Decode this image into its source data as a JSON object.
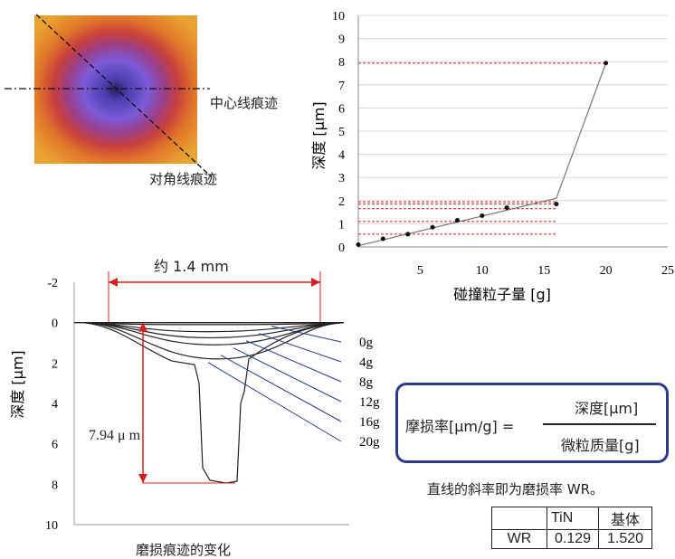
{
  "heatmap": {
    "center_line_label": "中心线痕迹",
    "diagonal_label": "对角线痕迹"
  },
  "chart_data": [
    {
      "type": "scatter",
      "xlabel": "碰撞粒子量 [g]",
      "ylabel": "深度 [μm]",
      "xlim": [
        0,
        25
      ],
      "ylim": [
        0,
        10
      ],
      "x_ticks": [
        "5",
        "10",
        "15",
        "20",
        "25"
      ],
      "y_ticks": [
        "0",
        "1",
        "2",
        "3",
        "4",
        "5",
        "6",
        "7",
        "8",
        "9",
        "10"
      ],
      "points": [
        {
          "x": 0,
          "y": 0.1
        },
        {
          "x": 2,
          "y": 0.35
        },
        {
          "x": 4,
          "y": 0.55
        },
        {
          "x": 6,
          "y": 0.85
        },
        {
          "x": 8,
          "y": 1.15
        },
        {
          "x": 10,
          "y": 1.35
        },
        {
          "x": 12,
          "y": 1.7
        },
        {
          "x": 16,
          "y": 1.85
        },
        {
          "x": 20,
          "y": 7.94
        }
      ],
      "fit_line": [
        {
          "x": 0,
          "y": 0.05
        },
        {
          "x": 16,
          "y": 2.1
        },
        {
          "x": 20,
          "y": 7.94
        }
      ],
      "reference_levels": [
        0.55,
        1.1,
        1.65,
        1.85,
        1.95,
        7.94
      ],
      "reference_color": "#d42020"
    },
    {
      "type": "line",
      "ylabel": "深度 [μm]",
      "ylim": [
        -2,
        10
      ],
      "y_axis_inverted": true,
      "y_ticks": [
        "-2",
        "0",
        "2",
        "4",
        "6",
        "8",
        "10"
      ],
      "width_label": "约 1.4 mm",
      "depth_label": "7.94 μ m",
      "caption": "磨损痕迹的变化",
      "series": [
        {
          "name": "0g",
          "max_depth": 0.1
        },
        {
          "name": "4g",
          "max_depth": 0.45
        },
        {
          "name": "8g",
          "max_depth": 0.75
        },
        {
          "name": "12g",
          "max_depth": 1.1
        },
        {
          "name": "16g",
          "max_depth": 1.8
        },
        {
          "name": "20g",
          "max_depth": 7.94
        }
      ],
      "accent_color": "#d42020",
      "leader_color": "#2c3a87"
    }
  ],
  "formula": {
    "lhs": "摩损率[μm/g] =",
    "numerator": "深度[μm]",
    "denominator": "微粒质量[g]"
  },
  "note": "直线的斜率即为磨损率 WR。",
  "wr_table": {
    "header": [
      "",
      "TiN",
      "基体"
    ],
    "row": [
      "WR",
      "0.129",
      "1.520"
    ]
  }
}
